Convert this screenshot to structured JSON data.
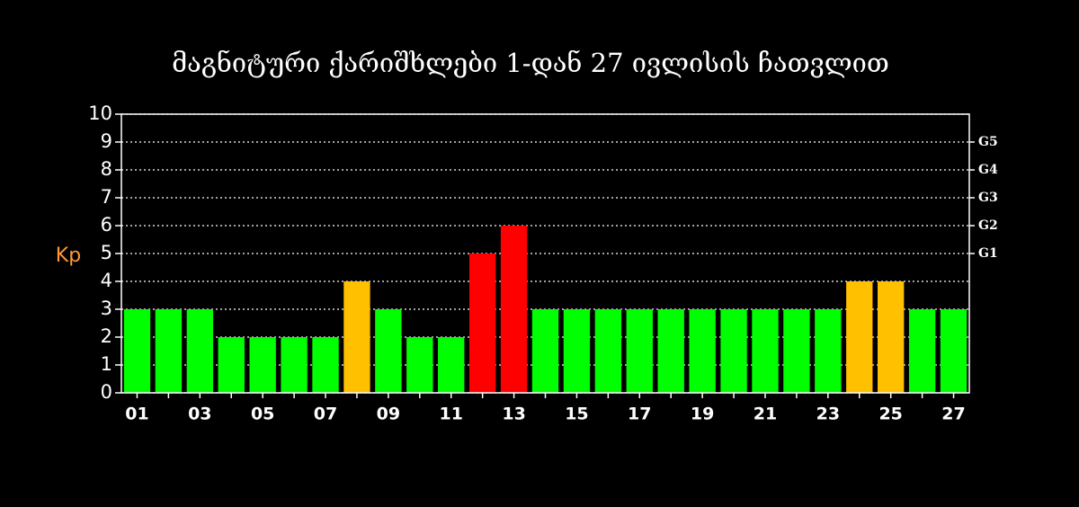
{
  "chart_data": {
    "type": "bar",
    "title": "მაგნიტური ქარიშხლები 1-დან 27 ივლისის ჩათვლით",
    "y_label": "Kp",
    "categories": [
      "01",
      null,
      "03",
      null,
      "05",
      null,
      "07",
      null,
      "09",
      null,
      "11",
      null,
      "13",
      null,
      "15",
      null,
      "17",
      null,
      "19",
      null,
      "21",
      null,
      "23",
      null,
      "25",
      null,
      "27"
    ],
    "values": [
      3,
      3,
      3,
      2,
      2,
      2,
      2,
      4,
      3,
      2,
      2,
      5,
      6,
      3,
      3,
      3,
      3,
      3,
      3,
      3,
      3,
      3,
      3,
      4,
      4,
      3,
      3
    ],
    "colors": [
      "#00ff00",
      "#00ff00",
      "#00ff00",
      "#00ff00",
      "#00ff00",
      "#00ff00",
      "#00ff00",
      "#ffc000",
      "#00ff00",
      "#00ff00",
      "#00ff00",
      "#ff0000",
      "#ff0000",
      "#00ff00",
      "#00ff00",
      "#00ff00",
      "#00ff00",
      "#00ff00",
      "#00ff00",
      "#00ff00",
      "#00ff00",
      "#00ff00",
      "#00ff00",
      "#ffc000",
      "#ffc000",
      "#00ff00",
      "#00ff00"
    ],
    "ylim": [
      0,
      10
    ],
    "yticks": [
      0,
      1,
      2,
      3,
      4,
      5,
      6,
      7,
      8,
      9,
      10
    ],
    "y2lim": [
      0,
      10
    ],
    "y2ticks": [
      {
        "value": 5,
        "label": "G1"
      },
      {
        "value": 6,
        "label": "G2"
      },
      {
        "value": 7,
        "label": "G3"
      },
      {
        "value": 8,
        "label": "G4"
      },
      {
        "value": 9,
        "label": "G5"
      }
    ],
    "grid": true
  }
}
